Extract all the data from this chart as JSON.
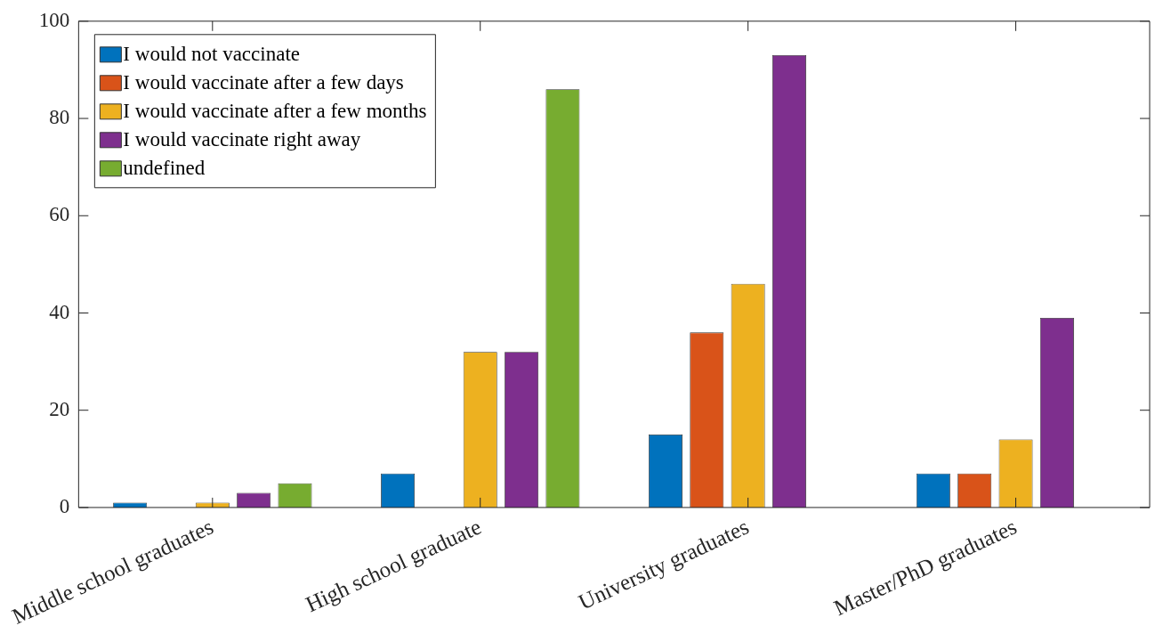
{
  "chart_data": {
    "type": "bar",
    "categories": [
      "Middle school graduates",
      "High school graduate",
      "University graduates",
      "Master/PhD graduates"
    ],
    "series": [
      {
        "name": "I would not vaccinate",
        "color": "#0072bd",
        "values": [
          1,
          7,
          15,
          7
        ]
      },
      {
        "name": "I would vaccinate after a few days",
        "color": "#d95319",
        "values": [
          0,
          0,
          36,
          7
        ]
      },
      {
        "name": "I would vaccinate after a few months",
        "color": "#edb120",
        "values": [
          1,
          32,
          46,
          14
        ]
      },
      {
        "name": "I would vaccinate right away",
        "color": "#7e2f8e",
        "values": [
          3,
          32,
          93,
          39
        ]
      },
      {
        "name": "undefined",
        "color": "#77ac30",
        "values": [
          5,
          86,
          0,
          0
        ]
      }
    ],
    "ylim": [
      0,
      100
    ],
    "yticks": [
      0,
      20,
      40,
      60,
      80,
      100
    ],
    "grid": false,
    "legend": "top left"
  }
}
